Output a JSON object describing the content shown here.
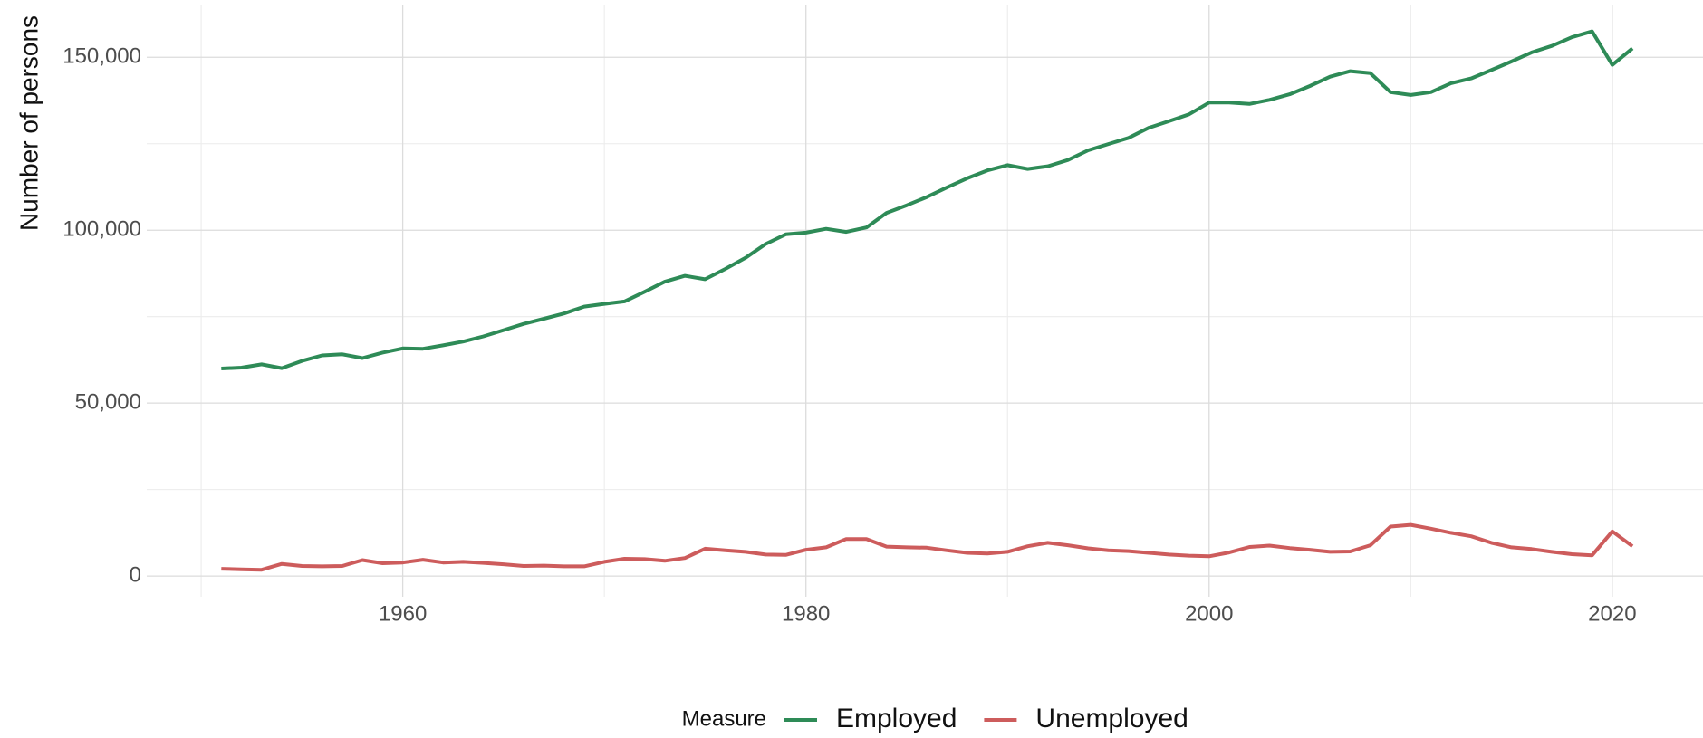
{
  "chart_data": {
    "type": "line",
    "y_label": "Number of persons",
    "legend_title": "Measure",
    "x": [
      1951,
      1952,
      1953,
      1954,
      1955,
      1956,
      1957,
      1958,
      1959,
      1960,
      1961,
      1962,
      1963,
      1964,
      1965,
      1966,
      1967,
      1968,
      1969,
      1970,
      1971,
      1972,
      1973,
      1974,
      1975,
      1976,
      1977,
      1978,
      1979,
      1980,
      1981,
      1982,
      1983,
      1984,
      1985,
      1986,
      1987,
      1988,
      1989,
      1990,
      1991,
      1992,
      1993,
      1994,
      1995,
      1996,
      1997,
      1998,
      1999,
      2000,
      2001,
      2002,
      2003,
      2004,
      2005,
      2006,
      2007,
      2008,
      2009,
      2010,
      2011,
      2012,
      2013,
      2014,
      2015,
      2016,
      2017,
      2018,
      2019,
      2020,
      2021
    ],
    "series": [
      {
        "name": "Employed",
        "color": "#2e8b57",
        "values": [
          60000,
          60250,
          61200,
          60100,
          62200,
          63800,
          64100,
          63000,
          64600,
          65800,
          65700,
          66700,
          67800,
          69300,
          71100,
          72900,
          74400,
          75900,
          77900,
          78700,
          79400,
          82200,
          85100,
          86800,
          85800,
          88800,
          92000,
          96000,
          98800,
          99300,
          100400,
          99500,
          100800,
          105000,
          107200,
          109600,
          112400,
          115000,
          117300,
          118800,
          117700,
          118500,
          120300,
          123100,
          124900,
          126700,
          129600,
          131500,
          133500,
          136900,
          136900,
          136500,
          137700,
          139300,
          141700,
          144400,
          146000,
          145400,
          139900,
          139100,
          139900,
          142500,
          143900,
          146300,
          148800,
          151400,
          153300,
          155800,
          157500,
          147800,
          152600
        ]
      },
      {
        "name": "Unemployed",
        "color": "#cd5c5c",
        "values": [
          2100,
          1900,
          1800,
          3500,
          2900,
          2800,
          2900,
          4600,
          3700,
          3900,
          4700,
          3900,
          4100,
          3800,
          3400,
          2900,
          3000,
          2800,
          2800,
          4100,
          5000,
          4900,
          4400,
          5200,
          7900,
          7400,
          7000,
          6200,
          6100,
          7600,
          8300,
          10700,
          10700,
          8500,
          8300,
          8200,
          7400,
          6700,
          6500,
          7000,
          8600,
          9600,
          8900,
          8000,
          7400,
          7200,
          6700,
          6200,
          5900,
          5700,
          6800,
          8400,
          8800,
          8100,
          7600,
          7000,
          7100,
          8900,
          14300,
          14800,
          13700,
          12500,
          11500,
          9600,
          8300,
          7800,
          7000,
          6300,
          6000,
          12900,
          8600
        ]
      }
    ],
    "xlim": [
      1947.3,
      2024.5
    ],
    "ylim": [
      -6000,
      165000
    ],
    "xticks": [
      1960,
      1980,
      2000,
      2020
    ],
    "x_minor_ticks": [
      1950,
      1970,
      1990,
      2010
    ],
    "yticks": [
      0,
      {
        "value": 50000,
        "label": "50,000"
      },
      {
        "value": 100000,
        "label": "100,000"
      },
      {
        "value": 150000,
        "label": "150,000"
      }
    ],
    "y_minor_ticks": [
      25000,
      75000,
      125000
    ],
    "grid": true,
    "legend": "bottom"
  }
}
